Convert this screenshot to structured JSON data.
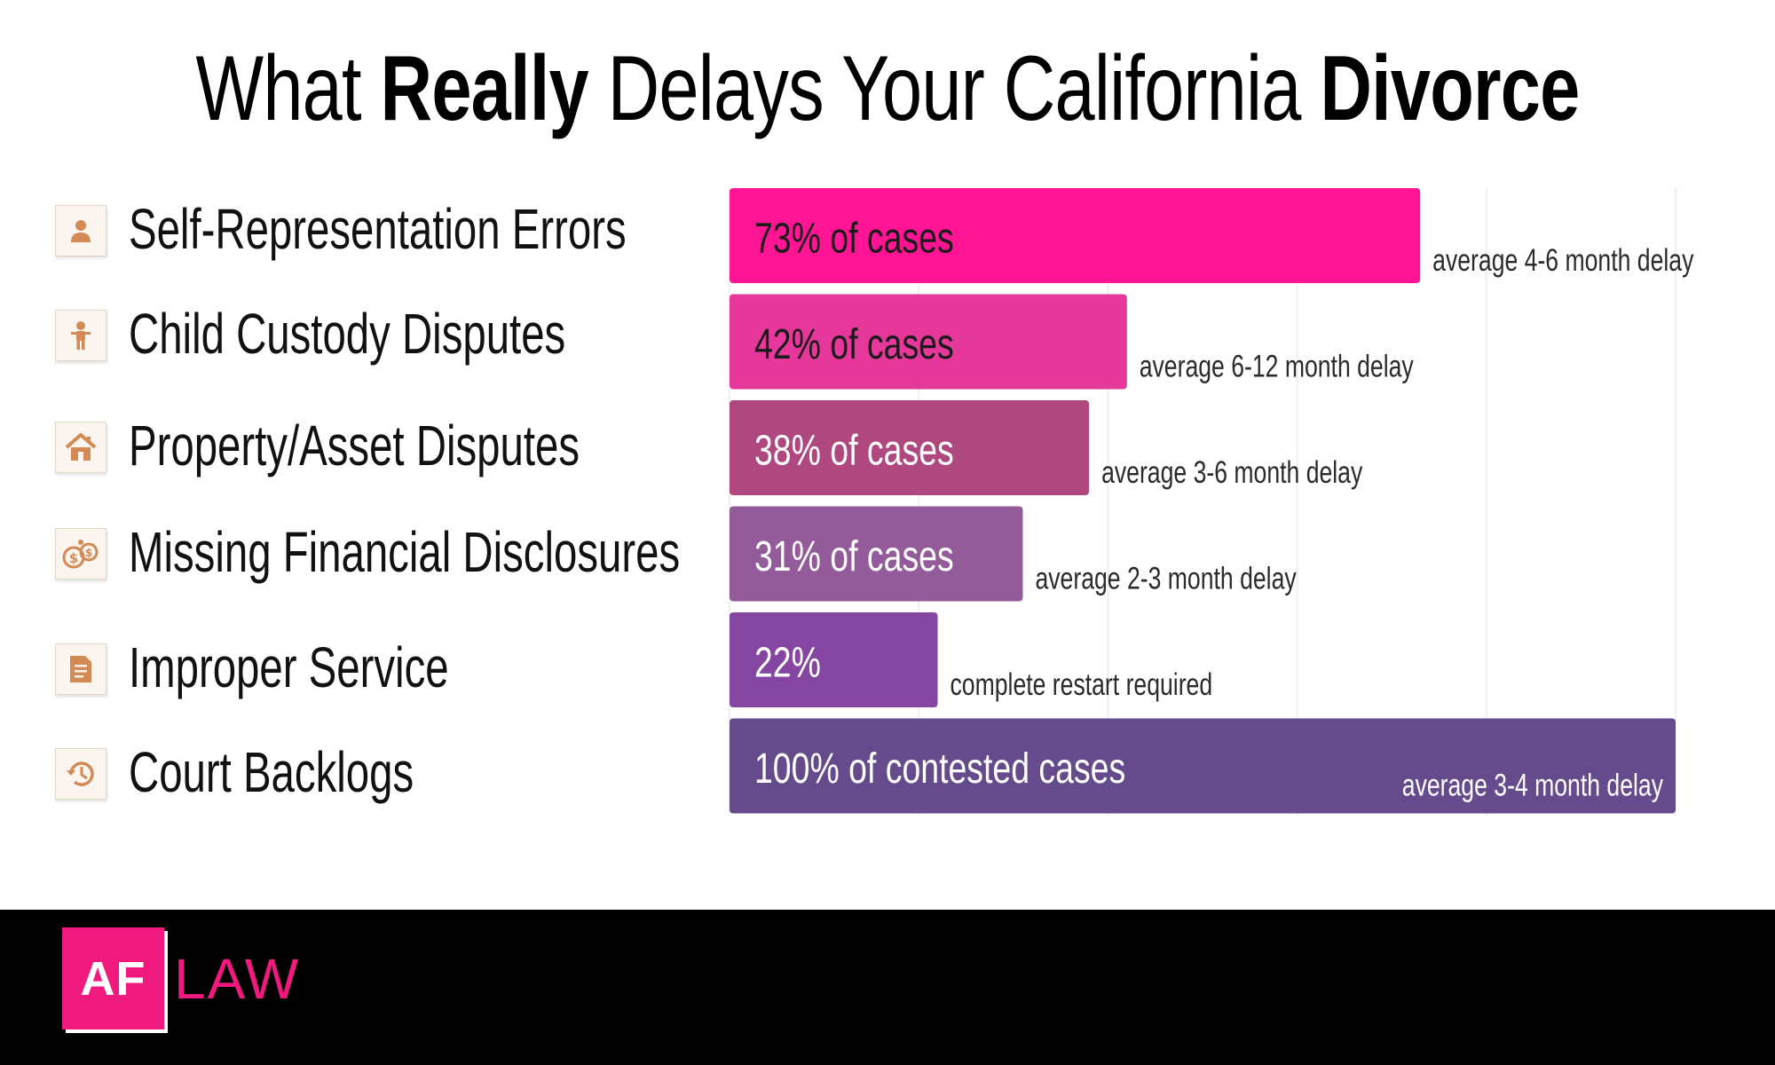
{
  "title": {
    "part1": "What ",
    "part2": "Really",
    "part3": " Delays Your California ",
    "part4": "Divorce"
  },
  "chart_data": {
    "type": "bar",
    "orientation": "horizontal",
    "categories": [
      "Self-Representation Errors",
      "Child Custody Disputes",
      "Property/Asset Disputes",
      "Missing Financial Disclosures",
      "Improper Service",
      "Court Backlogs"
    ],
    "values": [
      73,
      42,
      38,
      31,
      22,
      100
    ],
    "bar_labels": [
      "73% of cases",
      "42% of cases",
      "38% of cases",
      "31% of cases",
      "22%",
      "100% of contested cases"
    ],
    "annotations": [
      "average 4-6 month delay",
      "average 6-12 month delay",
      "average 3-6 month delay",
      "average 2-3 month delay",
      "complete restart required",
      "average 3-4 month delay"
    ],
    "colors": [
      "#ff1493",
      "#e6379a",
      "#b04880",
      "#945b9b",
      "#8446a0",
      "#654a8c"
    ],
    "icons": [
      "person-icon",
      "child-icon",
      "house-icon",
      "coins-icon",
      "document-icon",
      "history-icon"
    ],
    "xlim": [
      0,
      100
    ],
    "grid": true,
    "title": "",
    "xlabel": "",
    "ylabel": ""
  },
  "footer": {
    "logo_mark": "AF",
    "logo_word": "LAW",
    "brand_color": "#f0197d"
  }
}
